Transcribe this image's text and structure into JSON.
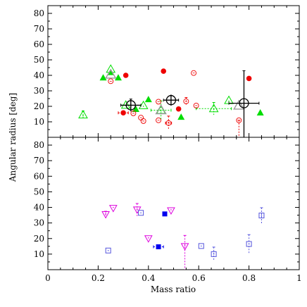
{
  "chart_data": [
    {
      "type": "scatter",
      "panel": "top",
      "xlim": [
        0,
        1
      ],
      "ylim": [
        0,
        85
      ],
      "xticks": [
        0,
        0.2,
        0.4,
        0.6,
        0.8,
        1
      ],
      "yticks": [
        10,
        20,
        30,
        40,
        50,
        60,
        70,
        80
      ],
      "xlabel": "",
      "ylabel": "Angular radius [deg]",
      "grid": false,
      "series": [
        {
          "marker": "filled-triangle",
          "color": "#00dd00",
          "points": [
            {
              "x": 0.22,
              "y": 38.5
            },
            {
              "x": 0.25,
              "y": 42
            },
            {
              "x": 0.28,
              "y": 38.5
            },
            {
              "x": 0.35,
              "y": 18.2
            },
            {
              "x": 0.4,
              "y": 24.5
            },
            {
              "x": 0.53,
              "y": 13.1
            },
            {
              "x": 0.845,
              "y": 15.9
            }
          ]
        },
        {
          "marker": "open-triangle",
          "color": "#00dd00",
          "points": [
            {
              "x": 0.14,
              "y": 14.5,
              "yerr": 2.5
            },
            {
              "x": 0.25,
              "y": 44
            },
            {
              "x": 0.31,
              "y": 20.8,
              "xerr": 0.02
            },
            {
              "x": 0.38,
              "y": 20.5
            },
            {
              "x": 0.45,
              "y": 17.5,
              "xerr": 0.04,
              "yerr": 6
            },
            {
              "x": 0.66,
              "y": 18.5,
              "xerr": 0.07,
              "yerr": 4
            },
            {
              "x": 0.72,
              "y": 23.8
            }
          ]
        },
        {
          "marker": "filled-circle",
          "color": "#ee0000",
          "points": [
            {
              "x": 0.3,
              "y": 15.8,
              "xerr": 0.02
            },
            {
              "x": 0.31,
              "y": 40
            },
            {
              "x": 0.46,
              "y": 42.7
            },
            {
              "x": 0.52,
              "y": 18.3
            },
            {
              "x": 0.8,
              "y": 38
            }
          ]
        },
        {
          "marker": "open-circle-dot",
          "color": "#ee0000",
          "points": [
            {
              "x": 0.25,
              "y": 36.2
            },
            {
              "x": 0.34,
              "y": 15.5
            },
            {
              "x": 0.37,
              "y": 12.7
            },
            {
              "x": 0.38,
              "y": 10.5
            },
            {
              "x": 0.44,
              "y": 23
            },
            {
              "x": 0.44,
              "y": 11
            },
            {
              "x": 0.48,
              "y": 9.2,
              "xerr": 0.012,
              "yerr": 4.5
            },
            {
              "x": 0.55,
              "y": 23.2,
              "yerr": 2.5
            },
            {
              "x": 0.58,
              "y": 41.5
            },
            {
              "x": 0.59,
              "y": 20.5
            },
            {
              "x": 0.76,
              "y": 11,
              "yerr_low": 11
            }
          ]
        },
        {
          "marker": "open-triangle-gray",
          "color": "#9a9a9a",
          "points": [
            {
              "x": 0.25,
              "y": 40.5
            },
            {
              "x": 0.45,
              "y": 17.5
            },
            {
              "x": 0.76,
              "y": 20.5
            }
          ]
        },
        {
          "marker": "large-open-circle-plus",
          "color": "#000000",
          "points": [
            {
              "x": 0.33,
              "y": 20.7,
              "xerr": 0.04,
              "yerr": 4
            },
            {
              "x": 0.49,
              "y": 24,
              "xerr": 0.03,
              "yerr": 3
            },
            {
              "x": 0.78,
              "y": 22,
              "xerr": 0.06,
              "yerr": 21,
              "yerr_low": 22
            }
          ]
        }
      ]
    },
    {
      "type": "scatter",
      "panel": "bottom",
      "xlim": [
        0,
        1
      ],
      "ylim": [
        0,
        85
      ],
      "xticks": [
        0,
        0.2,
        0.4,
        0.6,
        0.8,
        1
      ],
      "yticks": [
        10,
        20,
        30,
        40,
        50,
        60,
        70,
        80
      ],
      "xlabel": "Mass ratio",
      "ylabel": "Angular radius [deg]",
      "grid": false,
      "series": [
        {
          "marker": "open-down-triangle-dot",
          "color": "#dd00dd",
          "points": [
            {
              "x": 0.23,
              "y": 35.5,
              "yerr": 2
            },
            {
              "x": 0.26,
              "y": 39.5
            },
            {
              "x": 0.355,
              "y": 38.5,
              "yerr": 4
            },
            {
              "x": 0.4,
              "y": 20
            },
            {
              "x": 0.49,
              "y": 38
            },
            {
              "x": 0.545,
              "y": 15,
              "yerr": 7,
              "yerr_low": 15
            }
          ]
        },
        {
          "marker": "filled-square",
          "color": "#0000ee",
          "points": [
            {
              "x": 0.44,
              "y": 14.7,
              "xerr": 0.02
            },
            {
              "x": 0.465,
              "y": 35.8
            }
          ]
        },
        {
          "marker": "open-square-dot",
          "color": "#5555dd",
          "points": [
            {
              "x": 0.24,
              "y": 12.3
            },
            {
              "x": 0.37,
              "y": 36.5
            },
            {
              "x": 0.61,
              "y": 15.2
            },
            {
              "x": 0.66,
              "y": 10,
              "yerr": 4.5
            },
            {
              "x": 0.8,
              "y": 16.5,
              "yerr": 6
            },
            {
              "x": 0.85,
              "y": 34.8,
              "yerr": 5
            }
          ]
        }
      ]
    }
  ]
}
